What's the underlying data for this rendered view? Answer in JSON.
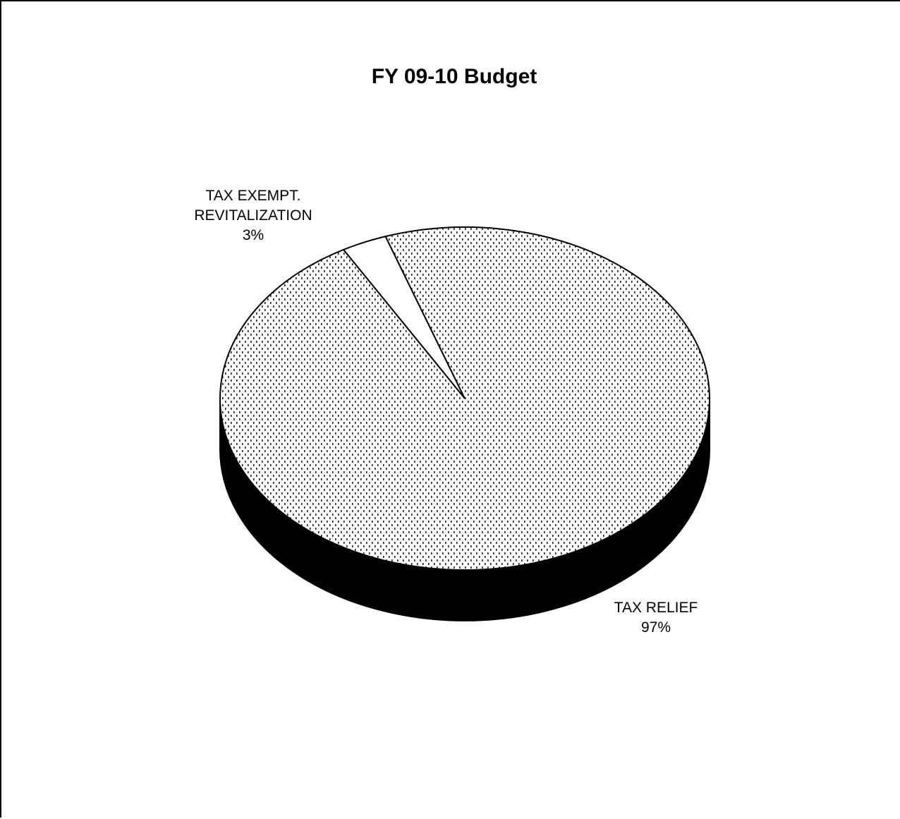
{
  "chart_data": {
    "type": "pie",
    "title": "FY 09-10 Budget",
    "style": "3d",
    "slices": [
      {
        "label_lines": [
          "TAX EXEMPT.",
          "REVITALIZATION"
        ],
        "value": 3,
        "value_text": "3%",
        "fill": "#ffffff",
        "pattern": "none"
      },
      {
        "label_lines": [
          "TAX RELIEF"
        ],
        "value": 97,
        "value_text": "97%",
        "fill": "#ffffff",
        "pattern": "dotted"
      }
    ],
    "side_color": "#000000"
  }
}
